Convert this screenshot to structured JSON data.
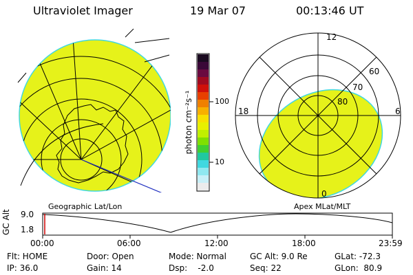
{
  "header": {
    "title": "Ultraviolet Imager",
    "date": "19 Mar 07",
    "time": "00:13:46 UT"
  },
  "colorbar": {
    "unit_label": "photon cm⁻²s⁻¹",
    "ticks": [
      "100",
      "10"
    ],
    "colors": [
      "#1a0a20",
      "#3a0838",
      "#6a0a40",
      "#a00a20",
      "#d0100a",
      "#e84000",
      "#f08000",
      "#f8b000",
      "#f8e000",
      "#e8f000",
      "#c0f000",
      "#80e000",
      "#40d030",
      "#20c8a0",
      "#40d8e0",
      "#90e8f0",
      "#c8f0f8",
      "#ececec"
    ]
  },
  "left_panel": {
    "label": "Geographic Lat/Lon",
    "fill_color": "#e6f21a"
  },
  "right_panel": {
    "label": "Apex MLat/MLT",
    "fill_color": "#e6f21a",
    "ring_labels": [
      "60",
      "70",
      "80"
    ],
    "clock_labels": {
      "top": "12",
      "right": "6",
      "bottom": "0",
      "left": "18"
    }
  },
  "timeline": {
    "y_axis_label": "GC Alt",
    "y_ticks": [
      "9.0",
      "1.8"
    ],
    "x_ticks": [
      "00:00",
      "06:00",
      "12:00",
      "18:00",
      "23:59"
    ],
    "marker_color": "#cc0000"
  },
  "footer": {
    "col1": [
      "Flt: HOME",
      "IP: 36.0"
    ],
    "col2": [
      "Door: Open",
      "Gain: 14"
    ],
    "col3": [
      "Mode: Normal",
      "Dsp:    -2.0"
    ],
    "col4": [
      "GC Alt: 9.0 Re",
      "Seq: 22"
    ],
    "col5": [
      "GLat: -72.3",
      "GLon:  80.9"
    ]
  }
}
